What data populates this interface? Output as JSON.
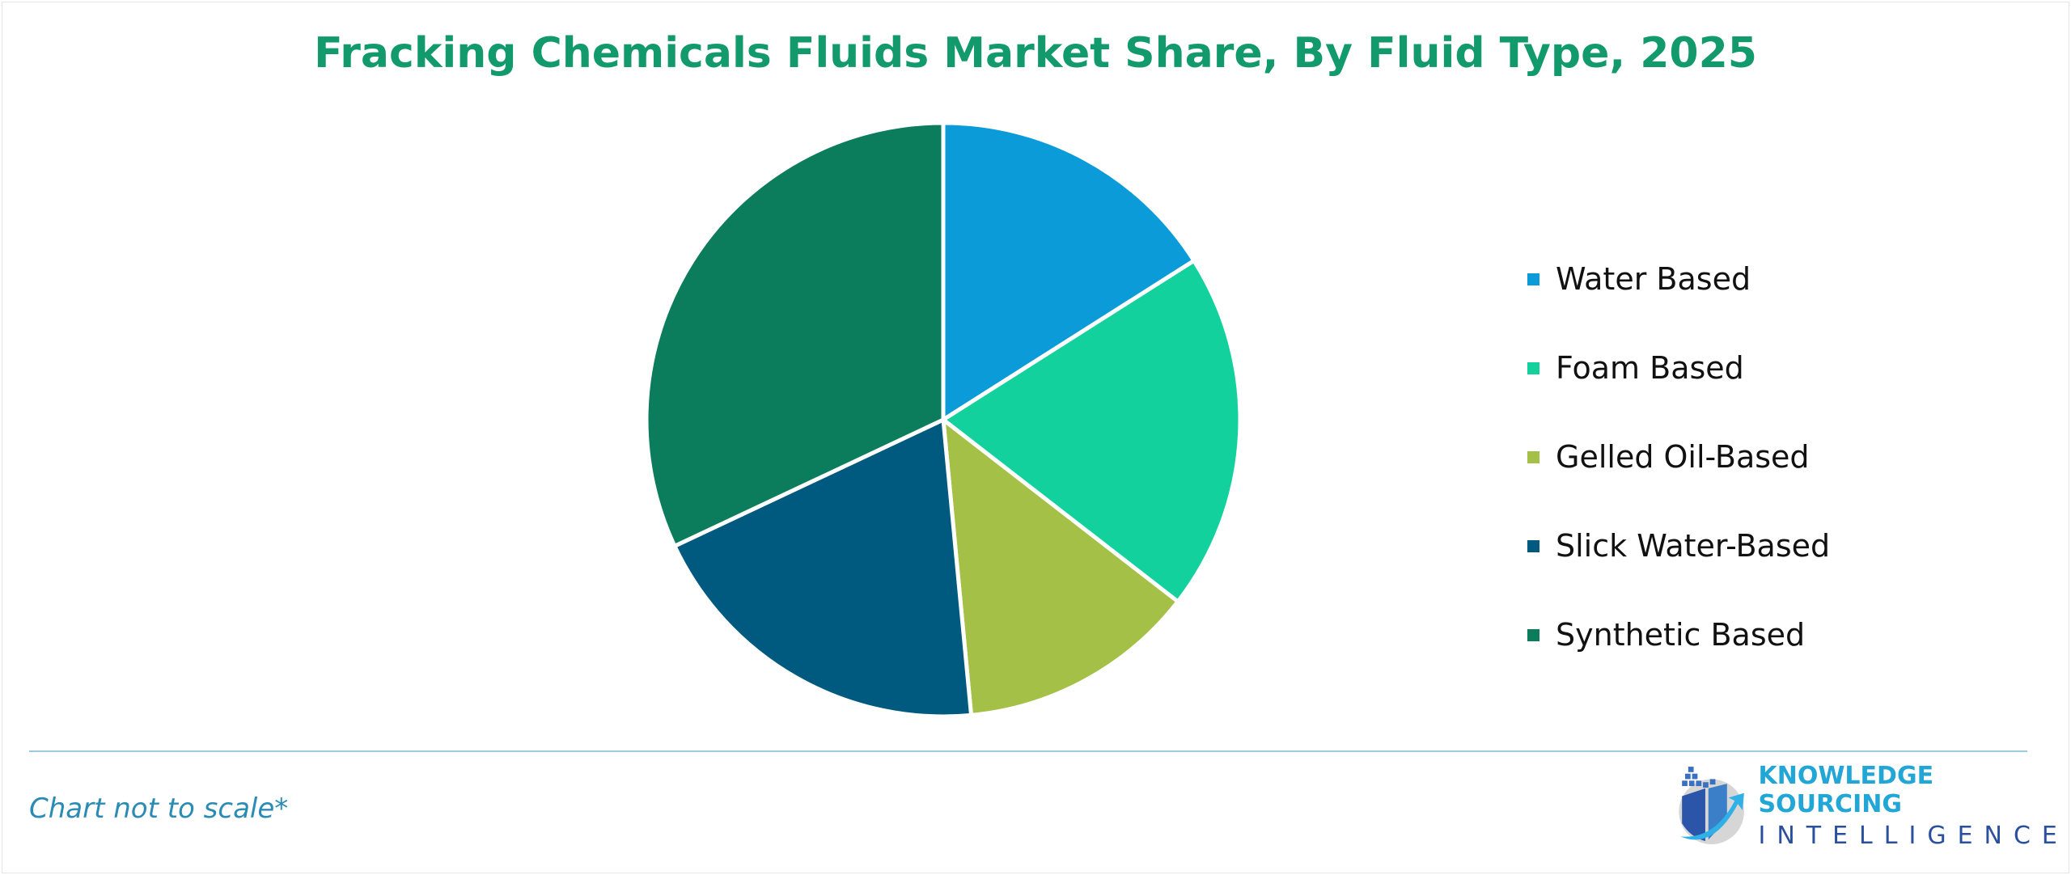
{
  "chart_data": {
    "type": "pie",
    "title": "Fracking Chemicals Fluids Market Share, By Fluid Type, 2025",
    "categories": [
      "Water Based",
      "Foam Based",
      "Gelled Oil-Based",
      "Slick Water-Based",
      "Synthetic Based"
    ],
    "values": [
      16,
      19.5,
      13,
      19.5,
      32
    ],
    "colors": [
      "#0a9bd8",
      "#12d19c",
      "#a5c046",
      "#005a80",
      "#0b7c5c"
    ],
    "legend_position": "right"
  },
  "footer": {
    "note": "Chart not to scale*",
    "logo_line1": "KNOWLEDGE SOURCING",
    "logo_line2": "INTELLIGENCE"
  }
}
